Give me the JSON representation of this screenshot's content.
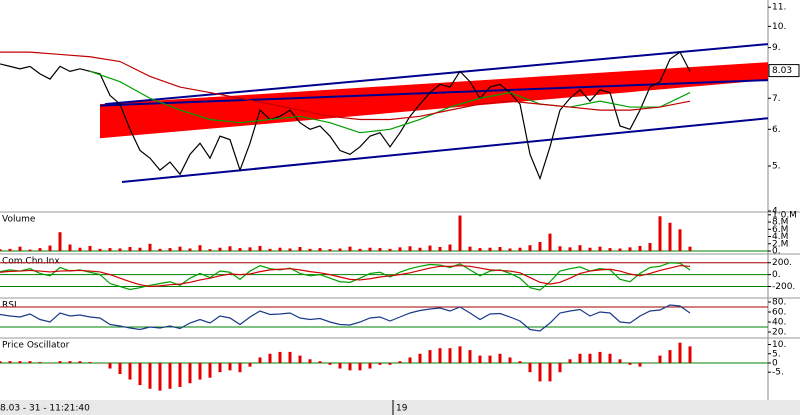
{
  "chart_data": [
    {
      "type": "line",
      "log_scale": true,
      "xlim": [
        0,
        76.8
      ],
      "ylim": [
        4,
        11.4
      ],
      "yticks": [
        {
          "value": 4,
          "label": "4."
        },
        {
          "value": 5,
          "label": "5."
        },
        {
          "value": 6,
          "label": "6."
        },
        {
          "value": 7,
          "label": "7."
        },
        {
          "value": 9,
          "label": "9."
        },
        {
          "value": 10,
          "label": "10."
        },
        {
          "value": 11,
          "label": "11."
        }
      ],
      "last_price": 8.03,
      "x": [
        0,
        1,
        2,
        3,
        4,
        5,
        6,
        7,
        8,
        9,
        10,
        11,
        12,
        13,
        14,
        15,
        16,
        17,
        18,
        19,
        20,
        21,
        22,
        23,
        24,
        25,
        26,
        27,
        28,
        29,
        30,
        31,
        32,
        33,
        34,
        35,
        36,
        37,
        38,
        39,
        40,
        41,
        42,
        43,
        44,
        45,
        46,
        47,
        48,
        49,
        50,
        51,
        52,
        53,
        54,
        55,
        56,
        57,
        58,
        59,
        60,
        61,
        62,
        63,
        64,
        65,
        66,
        67,
        68,
        69
      ],
      "band": {
        "color": "#ff0000",
        "x": [
          10,
          76.8
        ],
        "upper": [
          6.8,
          8.37
        ],
        "lower": [
          5.74,
          7.66
        ]
      },
      "lines": [
        {
          "color": "#000090",
          "x": [
            12.2,
            76.8
          ],
          "values": [
            4.62,
            6.34
          ]
        },
        {
          "color": "#000090",
          "x": [
            10.5,
            76.8
          ],
          "values": [
            6.8,
            9.16
          ]
        },
        {
          "color": "#000090",
          "x": [
            10,
            76.8
          ],
          "values": [
            6.75,
            7.66
          ]
        }
      ],
      "series": [
        {
          "color": "#000000",
          "values": [
            8.3,
            8.2,
            8.1,
            8.2,
            7.9,
            7.7,
            8.2,
            8.0,
            8.1,
            8.0,
            7.9,
            7.1,
            6.8,
            6.0,
            5.4,
            5.2,
            4.9,
            5.1,
            4.8,
            5.3,
            5.6,
            5.2,
            5.8,
            5.7,
            4.9,
            5.6,
            6.6,
            6.3,
            6.4,
            6.6,
            6.2,
            6.0,
            6.1,
            5.8,
            5.4,
            5.3,
            5.5,
            5.8,
            5.9,
            5.5,
            5.9,
            6.4,
            6.8,
            7.2,
            7.5,
            7.4,
            8.0,
            7.6,
            7.0,
            7.4,
            7.5,
            7.2,
            6.8,
            5.3,
            4.7,
            5.5,
            6.6,
            7.0,
            7.3,
            6.9,
            7.3,
            7.2,
            6.1,
            6.0,
            6.6,
            7.4,
            7.6,
            8.5,
            8.8,
            8.0
          ]
        },
        {
          "color": "#00a000",
          "x": [
            9,
            12,
            15,
            18,
            21,
            24,
            27,
            30,
            33,
            36,
            39,
            42,
            45,
            48,
            51,
            54,
            57,
            60,
            63,
            66,
            69
          ],
          "values": [
            8.0,
            7.6,
            7.0,
            6.6,
            6.3,
            6.2,
            6.3,
            6.4,
            6.2,
            5.9,
            6.0,
            6.3,
            6.7,
            7.0,
            7.2,
            6.8,
            6.7,
            6.9,
            6.7,
            6.7,
            7.2
          ]
        },
        {
          "color": "#c00000",
          "x": [
            0,
            3,
            6,
            9,
            12,
            15,
            18,
            21,
            24,
            27,
            30,
            33,
            36,
            39,
            42,
            45,
            48,
            51,
            54,
            57,
            60,
            63,
            66,
            69
          ],
          "values": [
            8.8,
            8.8,
            8.7,
            8.6,
            8.4,
            7.8,
            7.4,
            7.2,
            7.0,
            6.8,
            6.6,
            6.4,
            6.3,
            6.3,
            6.4,
            6.6,
            6.8,
            6.9,
            6.8,
            6.7,
            6.6,
            6.6,
            6.7,
            6.9
          ]
        }
      ]
    },
    {
      "type": "bar",
      "title": "Volume",
      "xlim": [
        0,
        76.8
      ],
      "ylim": [
        0,
        10.5
      ],
      "yticks": [
        {
          "value": 0,
          "label": "0."
        },
        {
          "value": 2,
          "label": "2.M"
        },
        {
          "value": 4,
          "label": "4.M"
        },
        {
          "value": 6,
          "label": "6.M"
        },
        {
          "value": 8,
          "label": "8.M"
        },
        {
          "value": 10,
          "label": "1 0.M"
        }
      ],
      "ref_lines": [
        {
          "value": 0,
          "color": "#008000"
        }
      ],
      "x": [
        0,
        1,
        2,
        3,
        4,
        5,
        6,
        7,
        8,
        9,
        10,
        11,
        12,
        13,
        14,
        15,
        16,
        17,
        18,
        19,
        20,
        21,
        22,
        23,
        24,
        25,
        26,
        27,
        28,
        29,
        30,
        31,
        32,
        33,
        34,
        35,
        36,
        37,
        38,
        39,
        40,
        41,
        42,
        43,
        44,
        45,
        46,
        47,
        48,
        49,
        50,
        51,
        52,
        53,
        54,
        55,
        56,
        57,
        58,
        59,
        60,
        61,
        62,
        63,
        64,
        65,
        66,
        67,
        68,
        69
      ],
      "series": [
        {
          "color": "#e00000",
          "values": [
            0.5,
            0.6,
            1.2,
            0.4,
            0.8,
            1.5,
            5.2,
            1.8,
            0.9,
            1.4,
            0.6,
            0.8,
            0.7,
            1.1,
            0.9,
            2.0,
            0.6,
            0.8,
            1.2,
            0.7,
            1.6,
            0.5,
            0.9,
            1.3,
            0.8,
            1.0,
            1.4,
            0.6,
            0.9,
            0.7,
            1.1,
            0.6,
            0.8,
            0.5,
            0.7,
            1.2,
            0.6,
            0.9,
            0.8,
            0.6,
            1.0,
            1.3,
            0.9,
            1.5,
            1.1,
            1.8,
            9.8,
            1.2,
            0.8,
            0.9,
            1.1,
            0.7,
            0.9,
            1.6,
            2.5,
            4.8,
            1.3,
            1.0,
            1.6,
            0.9,
            1.2,
            0.8,
            0.7,
            1.0,
            1.4,
            2.2,
            9.6,
            7.8,
            6.0,
            1.2
          ]
        }
      ]
    },
    {
      "type": "line",
      "title": "Com.Chn.Inx",
      "xlim": [
        0,
        76.8
      ],
      "ylim": [
        -360,
        330
      ],
      "yticks": [
        {
          "value": -200,
          "label": "-200."
        },
        {
          "value": 0,
          "label": "0."
        },
        {
          "value": 200,
          "label": "200."
        }
      ],
      "ref_lines": [
        {
          "value": 200,
          "color": "#a00000"
        },
        {
          "value": 0,
          "color": "#008000"
        },
        {
          "value": -200,
          "color": "#008000"
        }
      ],
      "x": [
        0,
        1,
        2,
        3,
        4,
        5,
        6,
        7,
        8,
        9,
        10,
        11,
        12,
        13,
        14,
        15,
        16,
        17,
        18,
        19,
        20,
        21,
        22,
        23,
        24,
        25,
        26,
        27,
        28,
        29,
        30,
        31,
        32,
        33,
        34,
        35,
        36,
        37,
        38,
        39,
        40,
        41,
        42,
        43,
        44,
        45,
        46,
        47,
        48,
        49,
        50,
        51,
        52,
        53,
        54,
        55,
        56,
        57,
        58,
        59,
        60,
        61,
        62,
        63,
        64,
        65,
        66,
        67,
        68,
        69
      ],
      "series": [
        {
          "color": "#00a000",
          "values": [
            50,
            80,
            60,
            100,
            20,
            -20,
            120,
            60,
            80,
            40,
            0,
            -150,
            -200,
            -250,
            -220,
            -180,
            -150,
            -120,
            -180,
            -60,
            20,
            -50,
            60,
            40,
            -80,
            60,
            150,
            100,
            80,
            110,
            20,
            -20,
            0,
            -60,
            -120,
            -130,
            -60,
            20,
            40,
            -40,
            40,
            100,
            140,
            170,
            160,
            120,
            180,
            80,
            -20,
            60,
            80,
            20,
            -60,
            -220,
            -260,
            -120,
            60,
            100,
            130,
            60,
            100,
            80,
            -80,
            -120,
            20,
            120,
            140,
            200,
            190,
            80
          ]
        },
        {
          "color": "#d00000",
          "values": [
            40,
            55,
            60,
            70,
            60,
            45,
            60,
            65,
            70,
            60,
            45,
            0,
            -60,
            -120,
            -170,
            -200,
            -190,
            -170,
            -160,
            -130,
            -90,
            -60,
            -20,
            10,
            0,
            10,
            50,
            80,
            90,
            100,
            80,
            50,
            30,
            0,
            -40,
            -80,
            -90,
            -70,
            -40,
            -20,
            0,
            30,
            70,
            110,
            140,
            140,
            150,
            140,
            110,
            80,
            70,
            60,
            30,
            -50,
            -130,
            -160,
            -130,
            -60,
            20,
            60,
            80,
            90,
            60,
            10,
            -20,
            20,
            70,
            110,
            150,
            140
          ]
        }
      ]
    },
    {
      "type": "line",
      "title": "RSI",
      "xlim": [
        0,
        76.8
      ],
      "ylim": [
        10,
        86
      ],
      "yticks": [
        {
          "value": 20,
          "label": "20."
        },
        {
          "value": 40,
          "label": "40."
        },
        {
          "value": 60,
          "label": "60."
        },
        {
          "value": 80,
          "label": "80."
        }
      ],
      "ref_lines": [
        {
          "value": 70,
          "color": "#a00000"
        },
        {
          "value": 30,
          "color": "#008000"
        }
      ],
      "x": [
        0,
        1,
        2,
        3,
        4,
        5,
        6,
        7,
        8,
        9,
        10,
        11,
        12,
        13,
        14,
        15,
        16,
        17,
        18,
        19,
        20,
        21,
        22,
        23,
        24,
        25,
        26,
        27,
        28,
        29,
        30,
        31,
        32,
        33,
        34,
        35,
        36,
        37,
        38,
        39,
        40,
        41,
        42,
        43,
        44,
        45,
        46,
        47,
        48,
        49,
        50,
        51,
        52,
        53,
        54,
        55,
        56,
        57,
        58,
        59,
        60,
        61,
        62,
        63,
        64,
        65,
        66,
        67,
        68,
        69
      ],
      "series": [
        {
          "color": "#1a3a8a",
          "values": [
            55,
            52,
            50,
            56,
            45,
            40,
            58,
            52,
            54,
            50,
            48,
            35,
            32,
            28,
            25,
            30,
            28,
            32,
            27,
            38,
            45,
            38,
            52,
            48,
            35,
            50,
            62,
            55,
            56,
            58,
            48,
            45,
            47,
            40,
            35,
            34,
            40,
            48,
            50,
            42,
            50,
            58,
            63,
            66,
            68,
            62,
            70,
            58,
            45,
            56,
            57,
            50,
            42,
            25,
            22,
            38,
            58,
            62,
            65,
            52,
            60,
            58,
            40,
            38,
            52,
            62,
            64,
            74,
            72,
            58
          ]
        }
      ]
    },
    {
      "type": "bar",
      "title": "Price Oscillator",
      "xlim": [
        0,
        76.8
      ],
      "ylim": [
        -19,
        13
      ],
      "yticks": [
        {
          "value": -5,
          "label": "-5."
        },
        {
          "value": 0,
          "label": "0"
        },
        {
          "value": 5,
          "label": "5."
        },
        {
          "value": 10,
          "label": "10."
        }
      ],
      "ref_lines": [
        {
          "value": 0,
          "color": "#008000"
        }
      ],
      "x": [
        0,
        1,
        2,
        3,
        4,
        5,
        6,
        7,
        8,
        9,
        10,
        11,
        12,
        13,
        14,
        15,
        16,
        17,
        18,
        19,
        20,
        21,
        22,
        23,
        24,
        25,
        26,
        27,
        28,
        29,
        30,
        31,
        32,
        33,
        34,
        35,
        36,
        37,
        38,
        39,
        40,
        41,
        42,
        43,
        44,
        45,
        46,
        47,
        48,
        49,
        50,
        51,
        52,
        53,
        54,
        55,
        56,
        57,
        58,
        59,
        60,
        61,
        62,
        63,
        64,
        65,
        66,
        67,
        68,
        69
      ],
      "xticks": [
        {
          "value": 39.3,
          "label": "19"
        }
      ],
      "status": "8.03 - 31 - 11:21:40",
      "series": [
        {
          "color": "#e00000",
          "values": [
            1,
            1,
            1,
            1,
            0.5,
            0,
            1,
            1,
            1,
            0.5,
            0,
            -3,
            -6,
            -9,
            -12,
            -14,
            -15,
            -14,
            -13,
            -11,
            -9,
            -8,
            -5,
            -4,
            -5,
            -2,
            3,
            5,
            6,
            6,
            4,
            2,
            1,
            -1,
            -3,
            -4,
            -4,
            -3,
            -1,
            -1,
            1,
            3,
            5,
            7,
            8,
            8,
            9,
            7,
            4,
            4,
            5,
            3,
            1,
            -5,
            -10,
            -10,
            -5,
            2,
            5,
            5,
            6,
            5,
            2,
            -1,
            -2,
            0,
            4,
            7,
            11,
            9
          ]
        }
      ]
    }
  ]
}
